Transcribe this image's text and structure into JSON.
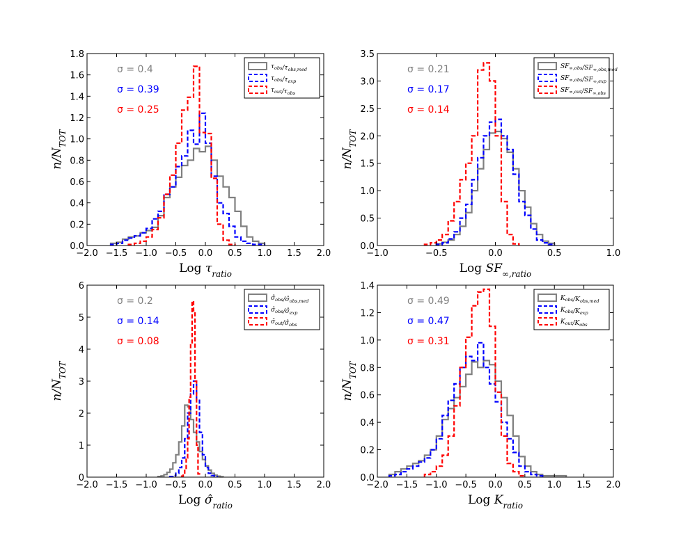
{
  "chart_data": [
    {
      "type": "histogram",
      "xlabel": "Log τratio",
      "ylabel": "n/NTOT",
      "xlim": [
        -2.0,
        2.0
      ],
      "ylim": [
        0,
        1.8
      ],
      "xticks": [
        "−2.0",
        "−1.5",
        "−1.0",
        "−0.5",
        "0.0",
        "0.5",
        "1.0",
        "1.5",
        "2.0"
      ],
      "yticks": [
        "0.0",
        "0.2",
        "0.4",
        "0.6",
        "0.8",
        "1.0",
        "1.2",
        "1.4",
        "1.6",
        "1.8"
      ],
      "sigma_labels": [
        "σ = 0.4",
        "σ = 0.39",
        "σ = 0.25"
      ],
      "series": [
        {
          "name": "τobs/τobs,med",
          "color": "#808080",
          "dash": false,
          "start": -1.6,
          "width": 0.1,
          "values": [
            0.02,
            0.03,
            0.06,
            0.08,
            0.09,
            0.12,
            0.14,
            0.17,
            0.28,
            0.45,
            0.55,
            0.64,
            0.75,
            0.8,
            0.91,
            0.88,
            0.93,
            0.8,
            0.65,
            0.55,
            0.45,
            0.32,
            0.18,
            0.08,
            0.04,
            0.02
          ]
        },
        {
          "name": "τobs/τexp",
          "color": "#0000ff",
          "dash": true,
          "start": -1.6,
          "width": 0.1,
          "values": [
            0.01,
            0.02,
            0.05,
            0.07,
            0.09,
            0.12,
            0.16,
            0.25,
            0.32,
            0.48,
            0.55,
            0.74,
            0.84,
            1.08,
            0.95,
            1.24,
            0.96,
            0.65,
            0.4,
            0.3,
            0.18,
            0.08,
            0.04,
            0.02,
            0.01,
            0.01
          ]
        },
        {
          "name": "τout/τobs",
          "color": "#ff0000",
          "dash": true,
          "start": -1.3,
          "width": 0.1,
          "values": [
            0.01,
            0.02,
            0.04,
            0.08,
            0.15,
            0.26,
            0.48,
            0.66,
            0.96,
            1.27,
            1.39,
            1.68,
            1.06,
            1.05,
            0.63,
            0.2,
            0.05,
            0.01
          ]
        }
      ]
    },
    {
      "type": "histogram",
      "xlabel": "Log SF∞,ratio",
      "ylabel": "n/NTOT",
      "xlim": [
        -1.0,
        1.0
      ],
      "ylim": [
        0,
        3.5
      ],
      "xticks": [
        "−1.0",
        "−0.5",
        "0.0",
        "0.5",
        "1.0"
      ],
      "yticks": [
        "0.0",
        "0.5",
        "1.0",
        "1.5",
        "2.0",
        "2.5",
        "3.0",
        "3.5"
      ],
      "sigma_labels": [
        "σ = 0.21",
        "σ = 0.17",
        "σ = 0.14"
      ],
      "series": [
        {
          "name": "SF∞,obs/SF∞,obs,med",
          "color": "#808080",
          "dash": false,
          "start": -0.5,
          "width": 0.05,
          "values": [
            0.03,
            0.06,
            0.1,
            0.2,
            0.35,
            0.6,
            1.0,
            1.4,
            1.75,
            2.05,
            2.08,
            1.95,
            1.7,
            1.4,
            1.0,
            0.7,
            0.4,
            0.2,
            0.08,
            0.04
          ]
        },
        {
          "name": "SF∞,obs/SF∞,exp",
          "color": "#0000ff",
          "dash": true,
          "start": -0.5,
          "width": 0.05,
          "values": [
            0.02,
            0.05,
            0.12,
            0.25,
            0.5,
            0.75,
            1.2,
            1.6,
            2.0,
            2.25,
            2.3,
            2.0,
            1.75,
            1.3,
            0.8,
            0.55,
            0.3,
            0.1,
            0.05,
            0.02
          ]
        },
        {
          "name": "SF∞,out/SF∞,obs",
          "color": "#ff0000",
          "dash": true,
          "start": -0.6,
          "width": 0.05,
          "values": [
            0.02,
            0.05,
            0.1,
            0.2,
            0.45,
            0.8,
            1.2,
            1.5,
            2.0,
            3.2,
            3.33,
            3.0,
            2.0,
            0.8,
            0.2,
            0.03
          ]
        }
      ]
    },
    {
      "type": "histogram",
      "xlabel": "Log σ̂ratio",
      "ylabel": "n/NTOT",
      "xlim": [
        -2.0,
        2.0
      ],
      "ylim": [
        0,
        6
      ],
      "xticks": [
        "−2.0",
        "−1.5",
        "−1.0",
        "−0.5",
        "0.0",
        "0.5",
        "1.0",
        "1.5",
        "2.0"
      ],
      "yticks": [
        "0",
        "1",
        "2",
        "3",
        "4",
        "5",
        "6"
      ],
      "sigma_labels": [
        "σ = 0.2",
        "σ = 0.14",
        "σ = 0.08"
      ],
      "series": [
        {
          "name": "σ̂obs/σ̂obs,med",
          "color": "#808080",
          "dash": false,
          "start": -0.8,
          "width": 0.05,
          "values": [
            0.02,
            0.04,
            0.08,
            0.15,
            0.25,
            0.45,
            0.7,
            1.1,
            1.6,
            2.25,
            2.2,
            1.8,
            1.4,
            1.1,
            0.8,
            0.55,
            0.35,
            0.22,
            0.12,
            0.06,
            0.03,
            0.01
          ]
        },
        {
          "name": "σ̂obs/σ̂exp",
          "color": "#0000ff",
          "dash": true,
          "start": -0.6,
          "width": 0.05,
          "values": [
            0.02,
            0.05,
            0.12,
            0.3,
            0.6,
            1.2,
            2.0,
            2.6,
            3.0,
            2.4,
            1.4,
            0.7,
            0.3,
            0.12,
            0.05,
            0.02
          ]
        },
        {
          "name": "σ̂out/σ̂obs",
          "color": "#ff0000",
          "dash": true,
          "start": -0.4,
          "width": 0.025,
          "values": [
            0.03,
            0.1,
            0.25,
            0.6,
            1.2,
            2.5,
            4.2,
            5.5,
            5.2,
            3.0,
            1.0,
            0.1
          ]
        }
      ]
    },
    {
      "type": "histogram",
      "xlabel": "Log Kratio",
      "ylabel": "n/NTOT",
      "xlim": [
        -2.0,
        2.0
      ],
      "ylim": [
        0,
        1.4
      ],
      "xticks": [
        "−2.0",
        "−1.5",
        "−1.0",
        "−0.5",
        "0.0",
        "0.5",
        "1.0",
        "1.5",
        "2.0"
      ],
      "yticks": [
        "0.0",
        "0.2",
        "0.4",
        "0.6",
        "0.8",
        "1.0",
        "1.2",
        "1.4"
      ],
      "sigma_labels": [
        "σ = 0.49",
        "σ = 0.47",
        "σ = 0.31"
      ],
      "series": [
        {
          "name": "Kobs/Kobs,med",
          "color": "#808080",
          "dash": false,
          "start": -1.8,
          "width": 0.1,
          "values": [
            0.02,
            0.04,
            0.06,
            0.08,
            0.1,
            0.12,
            0.16,
            0.2,
            0.3,
            0.42,
            0.5,
            0.58,
            0.66,
            0.75,
            0.84,
            0.8,
            0.85,
            0.82,
            0.7,
            0.58,
            0.45,
            0.3,
            0.15,
            0.08,
            0.04,
            0.02,
            0.01,
            0.01,
            0.01,
            0.01
          ]
        },
        {
          "name": "Kobs/Kexp",
          "color": "#0000ff",
          "dash": true,
          "start": -1.8,
          "width": 0.1,
          "values": [
            0.01,
            0.02,
            0.04,
            0.06,
            0.08,
            0.11,
            0.14,
            0.2,
            0.28,
            0.45,
            0.56,
            0.68,
            0.8,
            0.88,
            0.85,
            0.98,
            0.8,
            0.68,
            0.55,
            0.4,
            0.28,
            0.18,
            0.08,
            0.04,
            0.02,
            0.01
          ]
        },
        {
          "name": "Kout/Kobs",
          "color": "#ff0000",
          "dash": true,
          "start": -1.2,
          "width": 0.1,
          "values": [
            0.02,
            0.04,
            0.08,
            0.16,
            0.3,
            0.52,
            0.8,
            1.02,
            1.25,
            1.35,
            1.37,
            1.1,
            0.62,
            0.3,
            0.1,
            0.04,
            0.01
          ]
        }
      ]
    }
  ]
}
